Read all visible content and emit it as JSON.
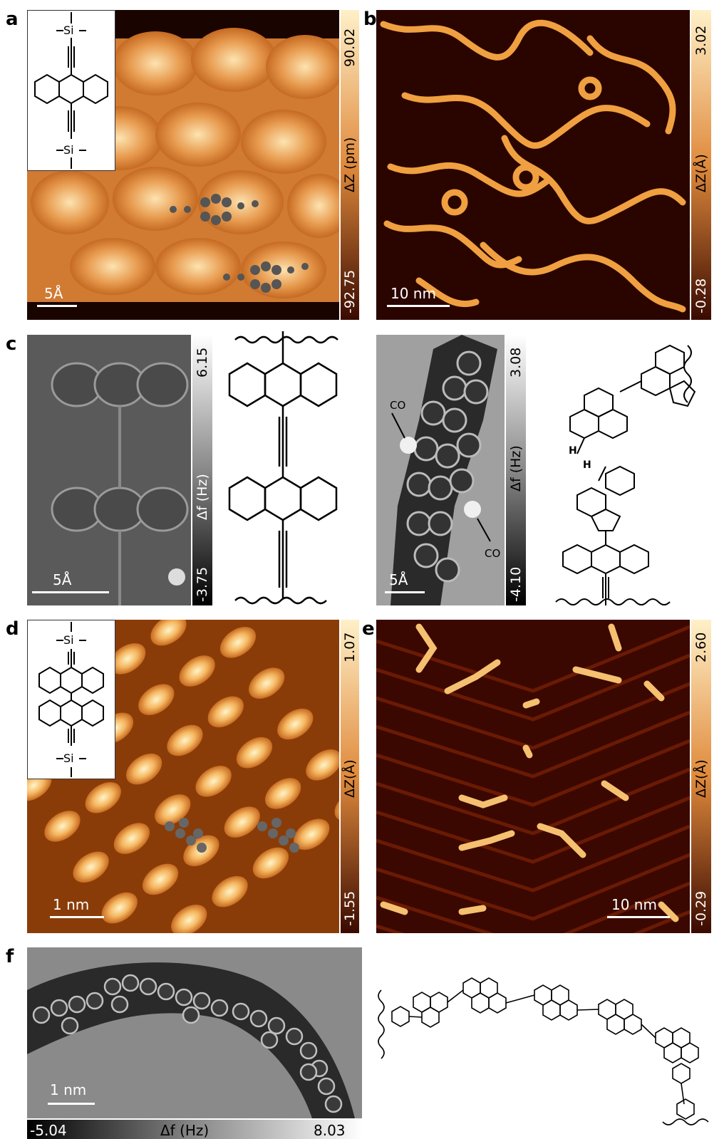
{
  "panels": {
    "a": {
      "label": "a",
      "scale_bar": "5Å",
      "colorbar": {
        "max": "90.02",
        "unit": "ΔZ (pm)",
        "min": "-92.75"
      }
    },
    "b": {
      "label": "b",
      "scale_bar": "10 nm",
      "colorbar": {
        "max": "3.02",
        "unit": "ΔZ(Å)",
        "min": "-0.28"
      }
    },
    "c": {
      "label": "c",
      "scale_bar": "5Å",
      "colorbar": {
        "max": "6.15",
        "unit": "Δf (Hz)",
        "min": "-3.75"
      }
    },
    "c2": {
      "scale_bar": "5Å",
      "colorbar": {
        "max": "3.08",
        "unit": "Δf (Hz)",
        "min": "-4.10"
      },
      "co_labels": [
        "CO",
        "CO"
      ]
    },
    "d": {
      "label": "d",
      "scale_bar": "1 nm",
      "colorbar": {
        "max": "1.07",
        "unit": "ΔZ(Å)",
        "min": "-1.55"
      }
    },
    "e": {
      "label": "e",
      "scale_bar": "10 nm",
      "colorbar": {
        "max": "2.60",
        "unit": "ΔZ(Å)",
        "min": "-0.29"
      }
    },
    "f": {
      "label": "f",
      "scale_bar": "1 nm",
      "colorbar": {
        "min": "-5.04",
        "unit": "Δf (Hz)",
        "max": "8.03"
      }
    }
  },
  "structure_labels": {
    "si": "Si",
    "h": "H"
  },
  "colors": {
    "afm_orange": "#e08a3c",
    "afm_dark": "#3a0a00",
    "afm_bright": "#fff0c8"
  }
}
